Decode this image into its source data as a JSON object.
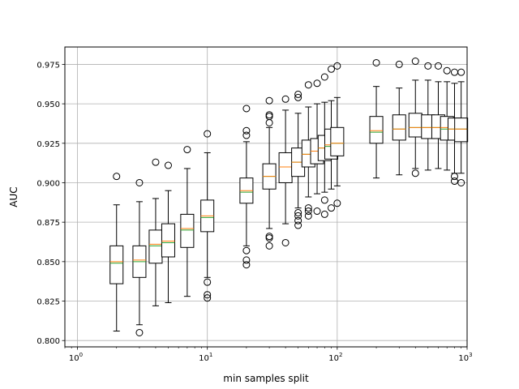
{
  "chart_data": {
    "type": "box",
    "title": "",
    "xlabel": "min samples split",
    "ylabel": "AUC",
    "xscale": "log",
    "xlim": [
      0.8,
      1000
    ],
    "ylim": [
      0.796,
      0.986
    ],
    "grid": true,
    "x_tick_labels": [
      {
        "base": "10",
        "exp": "0"
      },
      {
        "base": "10",
        "exp": "1"
      },
      {
        "base": "10",
        "exp": "2"
      },
      {
        "base": "10",
        "exp": "3"
      }
    ],
    "y_ticks": [
      "0.800",
      "0.825",
      "0.850",
      "0.875",
      "0.900",
      "0.925",
      "0.950",
      "0.975"
    ],
    "colors": {
      "box": "#000000",
      "median": "#ff7f0e",
      "mean": "#2ca02c",
      "grid": "#b0b0b0"
    },
    "boxes": [
      {
        "x": 2,
        "whislo": 0.806,
        "q1": 0.836,
        "med": 0.85,
        "mean": 0.849,
        "q3": 0.86,
        "whishi": 0.886,
        "fliers": [
          0.904
        ]
      },
      {
        "x": 3,
        "whislo": 0.81,
        "q1": 0.84,
        "med": 0.851,
        "mean": 0.85,
        "q3": 0.86,
        "whishi": 0.888,
        "fliers": [
          0.9,
          0.805
        ]
      },
      {
        "x": 4,
        "whislo": 0.822,
        "q1": 0.849,
        "med": 0.861,
        "mean": 0.86,
        "q3": 0.87,
        "whishi": 0.89,
        "fliers": [
          0.913
        ]
      },
      {
        "x": 5,
        "whislo": 0.824,
        "q1": 0.853,
        "med": 0.863,
        "mean": 0.862,
        "q3": 0.874,
        "whishi": 0.895,
        "fliers": [
          0.911
        ]
      },
      {
        "x": 7,
        "whislo": 0.828,
        "q1": 0.859,
        "med": 0.871,
        "mean": 0.87,
        "q3": 0.88,
        "whishi": 0.909,
        "fliers": [
          0.921
        ]
      },
      {
        "x": 10,
        "whislo": 0.84,
        "q1": 0.869,
        "med": 0.879,
        "mean": 0.878,
        "q3": 0.889,
        "whishi": 0.919,
        "fliers": [
          0.931,
          0.837,
          0.829,
          0.827
        ]
      },
      {
        "x": 20,
        "whislo": 0.86,
        "q1": 0.887,
        "med": 0.895,
        "mean": 0.894,
        "q3": 0.903,
        "whishi": 0.926,
        "fliers": [
          0.947,
          0.933,
          0.93,
          0.857,
          0.851,
          0.848
        ]
      },
      {
        "x": 30,
        "whislo": 0.871,
        "q1": 0.896,
        "med": 0.904,
        "mean": 0.904,
        "q3": 0.912,
        "whishi": 0.935,
        "fliers": [
          0.952,
          0.943,
          0.942,
          0.938,
          0.866,
          0.865,
          0.86
        ]
      },
      {
        "x": 40,
        "whislo": 0.874,
        "q1": 0.9,
        "med": 0.91,
        "mean": 0.91,
        "q3": 0.919,
        "whishi": 0.946,
        "fliers": [
          0.953,
          0.862
        ]
      },
      {
        "x": 50,
        "whislo": 0.884,
        "q1": 0.904,
        "med": 0.913,
        "mean": 0.913,
        "q3": 0.922,
        "whishi": 0.944,
        "fliers": [
          0.956,
          0.954,
          0.881,
          0.879,
          0.876,
          0.873
        ]
      },
      {
        "x": 60,
        "whislo": 0.891,
        "q1": 0.91,
        "med": 0.918,
        "mean": 0.918,
        "q3": 0.927,
        "whishi": 0.948,
        "fliers": [
          0.962,
          0.884,
          0.882,
          0.879
        ]
      },
      {
        "x": 70,
        "whislo": 0.893,
        "q1": 0.912,
        "med": 0.92,
        "mean": 0.92,
        "q3": 0.928,
        "whishi": 0.95,
        "fliers": [
          0.963,
          0.882
        ]
      },
      {
        "x": 80,
        "whislo": 0.894,
        "q1": 0.914,
        "med": 0.922,
        "mean": 0.922,
        "q3": 0.93,
        "whishi": 0.951,
        "fliers": [
          0.967,
          0.889,
          0.88
        ]
      },
      {
        "x": 90,
        "whislo": 0.896,
        "q1": 0.915,
        "med": 0.924,
        "mean": 0.923,
        "q3": 0.934,
        "whishi": 0.952,
        "fliers": [
          0.972,
          0.884
        ]
      },
      {
        "x": 100,
        "whislo": 0.898,
        "q1": 0.917,
        "med": 0.925,
        "mean": 0.925,
        "q3": 0.935,
        "whishi": 0.954,
        "fliers": [
          0.974,
          0.887
        ]
      },
      {
        "x": 200,
        "whislo": 0.903,
        "q1": 0.925,
        "med": 0.933,
        "mean": 0.932,
        "q3": 0.942,
        "whishi": 0.961,
        "fliers": [
          0.976
        ]
      },
      {
        "x": 300,
        "whislo": 0.905,
        "q1": 0.927,
        "med": 0.934,
        "mean": 0.934,
        "q3": 0.943,
        "whishi": 0.96,
        "fliers": [
          0.975
        ]
      },
      {
        "x": 400,
        "whislo": 0.909,
        "q1": 0.929,
        "med": 0.935,
        "mean": 0.935,
        "q3": 0.944,
        "whishi": 0.965,
        "fliers": [
          0.977,
          0.906
        ]
      },
      {
        "x": 500,
        "whislo": 0.908,
        "q1": 0.928,
        "med": 0.935,
        "mean": 0.935,
        "q3": 0.943,
        "whishi": 0.965,
        "fliers": [
          0.974
        ]
      },
      {
        "x": 600,
        "whislo": 0.909,
        "q1": 0.928,
        "med": 0.935,
        "mean": 0.935,
        "q3": 0.943,
        "whishi": 0.964,
        "fliers": [
          0.974
        ]
      },
      {
        "x": 700,
        "whislo": 0.908,
        "q1": 0.927,
        "med": 0.935,
        "mean": 0.934,
        "q3": 0.942,
        "whishi": 0.964,
        "fliers": [
          0.971
        ]
      },
      {
        "x": 800,
        "whislo": 0.906,
        "q1": 0.927,
        "med": 0.934,
        "mean": 0.934,
        "q3": 0.941,
        "whishi": 0.963,
        "fliers": [
          0.97,
          0.904,
          0.901
        ]
      },
      {
        "x": 900,
        "whislo": 0.906,
        "q1": 0.926,
        "med": 0.934,
        "mean": 0.934,
        "q3": 0.941,
        "whishi": 0.964,
        "fliers": [
          0.97,
          0.9
        ]
      }
    ]
  }
}
